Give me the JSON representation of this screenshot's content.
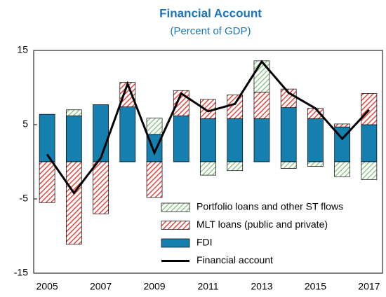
{
  "chart_data": {
    "type": "bar",
    "stacked": true,
    "title": "Financial Account",
    "subtitle": "(Percent of GDP)",
    "categories": [
      "2005",
      null,
      "2007",
      null,
      "2009",
      null,
      "2011",
      null,
      "2013",
      null,
      "2015",
      null,
      "2017"
    ],
    "series": [
      {
        "name": "Portfolio loans and other ST flows",
        "color": "#8fc98a",
        "pattern": "hatch",
        "values": [
          0,
          0.8,
          0,
          0,
          2.2,
          0,
          -1.8,
          -1.2,
          4.2,
          -0.9,
          -0.6,
          -2.0,
          -2.4
        ]
      },
      {
        "name": "MLT loans (public and private)",
        "color": "#e8463c",
        "pattern": "hatch",
        "values": [
          -5.5,
          -11.1,
          -7.0,
          3.3,
          -4.8,
          3.4,
          2.6,
          3.2,
          3.6,
          2.5,
          1.4,
          0.4,
          4.2
        ]
      },
      {
        "name": "FDI",
        "color": "#1580b0",
        "values": [
          6.4,
          6.2,
          7.7,
          7.4,
          3.7,
          6.2,
          5.8,
          5.8,
          5.8,
          7.3,
          5.8,
          4.7,
          5.0
        ]
      },
      {
        "name": "Financial account",
        "type": "line",
        "color": "#000000",
        "values": [
          1.0,
          -4.2,
          0.5,
          10.5,
          1.2,
          9.2,
          6.8,
          7.8,
          13.5,
          9.3,
          7.2,
          3.1,
          7.0
        ]
      }
    ],
    "ylim": [
      -15,
      15
    ],
    "yticks": [
      -15,
      -5,
      5,
      15
    ],
    "grid": false,
    "legend": "lower right"
  }
}
